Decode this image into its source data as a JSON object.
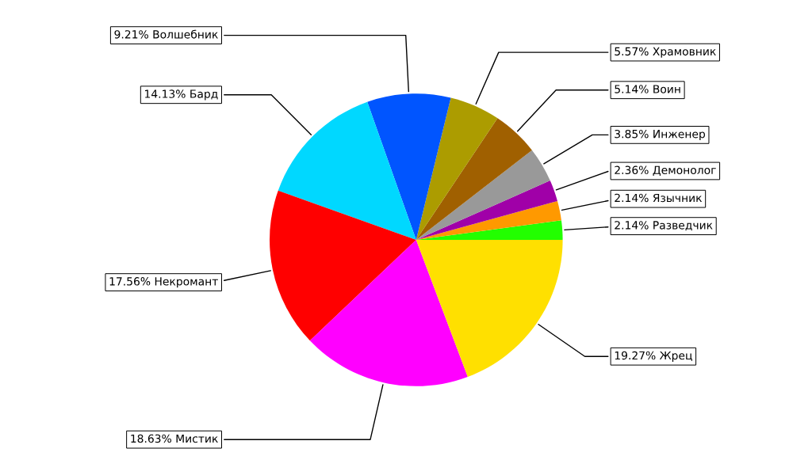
{
  "chart_data": {
    "type": "pie",
    "categories": [
      "Разведчик",
      "Язычник",
      "Демонолог",
      "Инженер",
      "Воин",
      "Храмовник",
      "Волшебник",
      "Бард",
      "Некромант",
      "Мистик",
      "Жрец"
    ],
    "values": [
      2.14,
      2.14,
      2.36,
      3.85,
      5.14,
      5.57,
      9.21,
      14.13,
      17.56,
      18.63,
      19.27
    ],
    "value_labels": [
      "2.14%",
      "2.14%",
      "2.36%",
      "3.85%",
      "5.14%",
      "5.57%",
      "9.21%",
      "14.13%",
      "17.56%",
      "18.63%",
      "19.27%"
    ],
    "colors": [
      "#22ff00",
      "#ff9900",
      "#a000a8",
      "#999999",
      "#a06000",
      "#ac9c00",
      "#0055ff",
      "#00d8ff",
      "#ff0000",
      "#ff00ff",
      "#ffe000"
    ]
  }
}
